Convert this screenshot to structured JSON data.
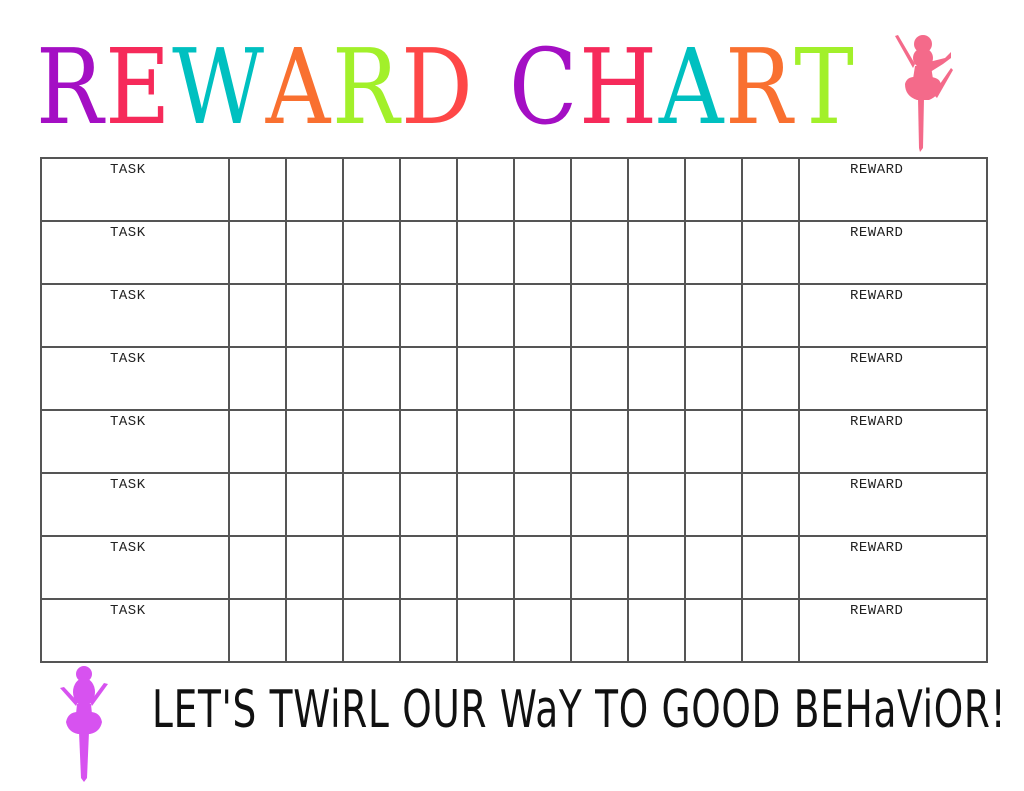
{
  "title": {
    "letters": [
      {
        "ch": "R",
        "color": "#a40fc4"
      },
      {
        "ch": "E",
        "color": "#f62a5a"
      },
      {
        "ch": "W",
        "color": "#00c0c0"
      },
      {
        "ch": "A",
        "color": "#f97030"
      },
      {
        "ch": "R",
        "color": "#a2f02a"
      },
      {
        "ch": "D",
        "color": "#fe4747"
      },
      {
        "ch": " ",
        "color": "#000000"
      },
      {
        "ch": "C",
        "color": "#a40fc4"
      },
      {
        "ch": "H",
        "color": "#f62a5a"
      },
      {
        "ch": "A",
        "color": "#00c0c0"
      },
      {
        "ch": "R",
        "color": "#f97030"
      },
      {
        "ch": "T",
        "color": "#a2f02a"
      }
    ]
  },
  "decor": {
    "top_dancer_icon": "ballerina-icon",
    "top_dancer_color": "#f46a8a",
    "bottom_dancer_icon": "ballerina-icon",
    "bottom_dancer_color": "#d752f0"
  },
  "grid": {
    "rows": [
      {
        "task": "TASK",
        "reward": "REWARD"
      },
      {
        "task": "TASK",
        "reward": "REWARD"
      },
      {
        "task": "TASK",
        "reward": "REWARD"
      },
      {
        "task": "TASK",
        "reward": "REWARD"
      },
      {
        "task": "TASK",
        "reward": "REWARD"
      },
      {
        "task": "TASK",
        "reward": "REWARD"
      },
      {
        "task": "TASK",
        "reward": "REWARD"
      },
      {
        "task": "TASK",
        "reward": "REWARD"
      }
    ]
  },
  "tagline": "LET'S TWiRL OUR WaY TO GOOD BEHaViOR!"
}
